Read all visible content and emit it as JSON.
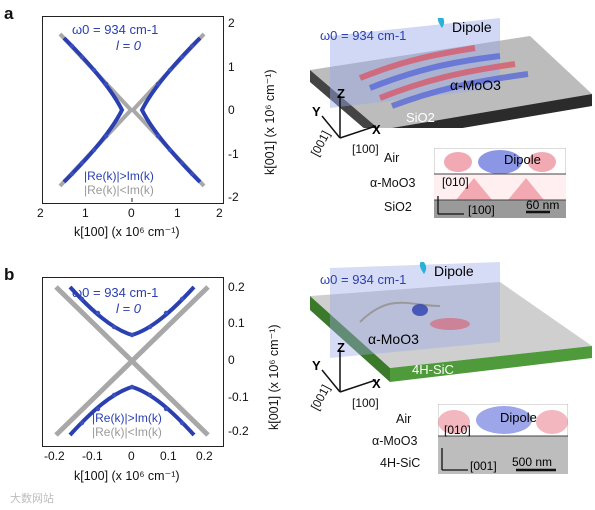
{
  "figure": {
    "panel_a": {
      "label": "a",
      "omega": "ω0 = 934 cm-1",
      "l": "l = 0",
      "legend": [
        "|Re(k)|>Im(k)",
        "|Re(k)|<Im(k)"
      ],
      "xlabel": "k[100] (x 10⁶ cm⁻¹)",
      "ylabel": "k[001] (x 10⁶ cm⁻¹)",
      "xticks": [
        "2",
        "1",
        "0",
        "1",
        "2"
      ],
      "yticks": [
        "2",
        "1",
        "0",
        "-1",
        "-2"
      ],
      "schematic": {
        "omega": "ω0 = 934 cm-1",
        "dipole": "Dipole",
        "material": "α-MoO3",
        "substrate": "SiO2",
        "axes": [
          "Z",
          "Y",
          "X",
          "[001]",
          "[100]"
        ],
        "inset": {
          "top": "Air",
          "middle": "α-MoO3",
          "bottom": "SiO2",
          "dipole": "Dipole",
          "dir_a": "[010]",
          "dir_b": "[100]",
          "scale": "60 nm"
        }
      }
    },
    "panel_b": {
      "label": "b",
      "omega": "ω0 = 934 cm-1",
      "l": "l = 0",
      "legend": [
        "|Re(k)|>Im(k)",
        "|Re(k)|<Im(k)"
      ],
      "xlabel": "k[100] (x 10⁶ cm⁻¹)",
      "ylabel": "k[001] (x 10⁶ cm⁻¹)",
      "xticks": [
        "-0.2",
        "-0.1",
        "0",
        "0.1",
        "0.2"
      ],
      "yticks": [
        "0.2",
        "0.1",
        "0",
        "-0.1",
        "-0.2"
      ],
      "schematic": {
        "omega": "ω0 = 934 cm-1",
        "dipole": "Dipole",
        "material": "α-MoO3",
        "substrate": "4H-SiC",
        "axes": [
          "Z",
          "Y",
          "X",
          "[001]",
          "[100]"
        ],
        "inset": {
          "top": "Air",
          "middle": "α-MoO3",
          "bottom": "4H-SiC",
          "dipole": "Dipole",
          "dir_a": "[010]",
          "dir_b": "[001]",
          "scale": "500 nm"
        }
      }
    },
    "watermark": "大数网站"
  },
  "colors": {
    "blue": "#2a3fb0",
    "grey": "#a9a9a9",
    "mo": "#c9c9c9",
    "sio2": "#2b2b2b",
    "sic": "#4f9a3a"
  }
}
